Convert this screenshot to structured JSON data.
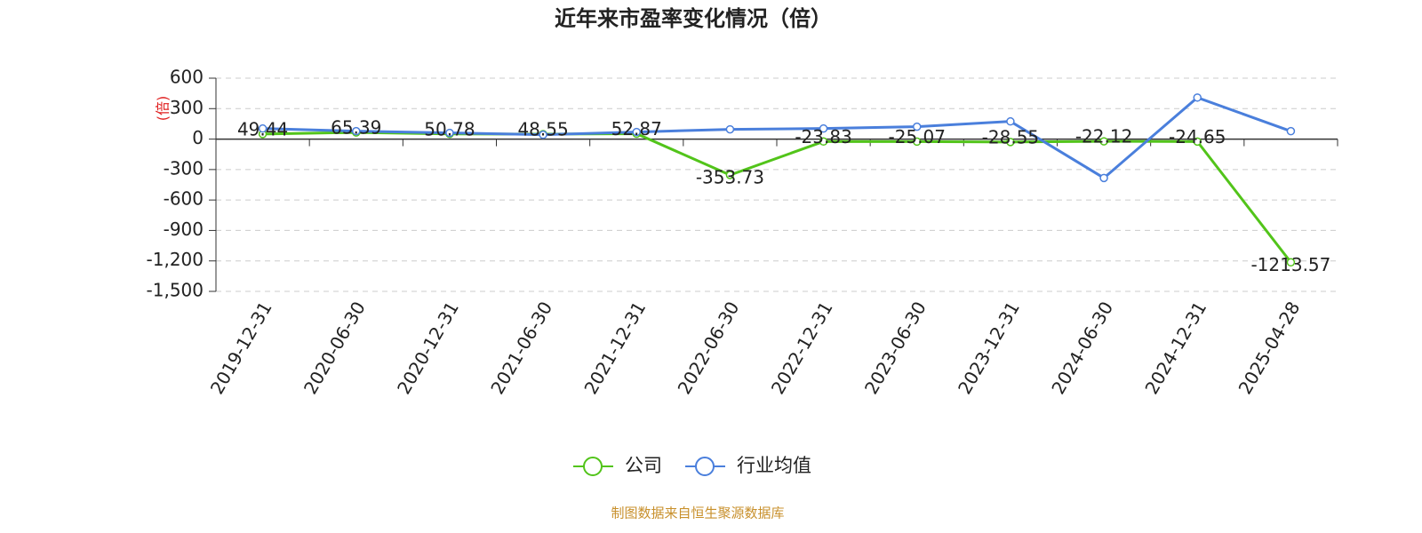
{
  "chart_data": {
    "type": "line",
    "title": "近年来市盈率变化情况（倍）",
    "y_label": "(倍)",
    "source": "制图数据来自恒生聚源数据库",
    "categories": [
      "2019-12-31",
      "2020-06-30",
      "2020-12-31",
      "2021-06-30",
      "2021-12-31",
      "2022-06-30",
      "2022-12-31",
      "2023-06-30",
      "2023-12-31",
      "2024-06-30",
      "2024-12-31",
      "2025-04-28"
    ],
    "series": [
      {
        "name": "公司",
        "color": "#52c41a",
        "labels": true,
        "values": [
          49.44,
          65.39,
          50.78,
          48.55,
          52.87,
          -353.73,
          -23.83,
          -25.07,
          -28.55,
          -22.12,
          -24.65,
          -1213.57
        ]
      },
      {
        "name": "行业均值",
        "color": "#4a7fdc",
        "labels": false,
        "values": [
          104,
          78,
          61,
          43,
          70,
          96,
          104,
          122,
          174,
          -383,
          409,
          78
        ]
      }
    ],
    "ylim": [
      -1500,
      600
    ],
    "yticks": [
      {
        "value": -1500,
        "label": "-1,500"
      },
      {
        "value": -1200,
        "label": "-1,200"
      },
      -900,
      -600,
      -300,
      0,
      300,
      600
    ],
    "grid": true
  }
}
